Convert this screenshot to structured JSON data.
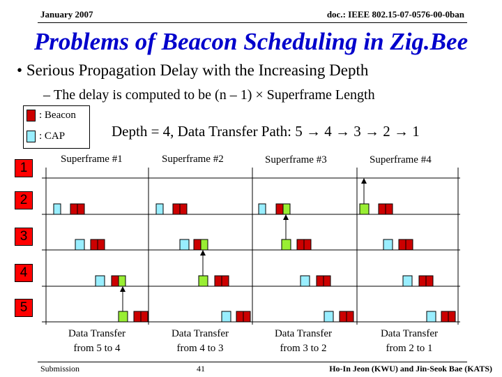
{
  "header": {
    "date": "January 2007",
    "doc": "doc.: IEEE 802.15-07-0576-00-0ban"
  },
  "title": "Problems of Beacon Scheduling in Zig.Bee",
  "bullet": "Serious Propagation Delay with the Increasing Depth",
  "subbullet": "The delay is computed to be (n – 1) × Superframe Length",
  "legend": {
    "beacon": ": Beacon",
    "cap": ": CAP",
    "beacon_color": "#cc0000",
    "cap_color": "#99eeff",
    "data_color": "#99ee33"
  },
  "depth_text": "Depth = 4,  Data Transfer Path: 5 → 4 → 3 → 2 → 1",
  "superframes": [
    "Superframe #1",
    "Superframe #2",
    "Superframe #3",
    "Superframe #4"
  ],
  "nodes": [
    "1",
    "2",
    "3",
    "4",
    "5"
  ],
  "captions": [
    {
      "line1": "Data Transfer",
      "line2": "from 5 to 4"
    },
    {
      "line1": "Data Transfer",
      "line2": "from 4 to 3"
    },
    {
      "line1": "Data Transfer",
      "line2": "from 3 to 2"
    },
    {
      "line1": "Data Transfer",
      "line2": "from 2 to 1"
    }
  ],
  "footer": {
    "left": "Submission",
    "page": "41",
    "right": "Ho-In Jeon (KWU) and Jin-Seok Bae (KATS)"
  }
}
